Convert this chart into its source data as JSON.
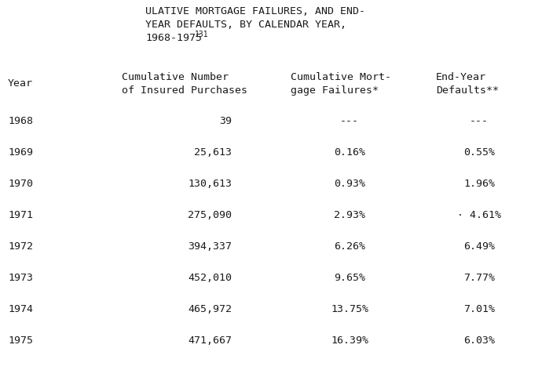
{
  "title_line1": "ULATIVE MORTGAGE FAILURES, AND END-",
  "title_line2": "YEAR DEFAULTS, BY CALENDAR YEAR,",
  "title_line3": "1968-1975",
  "title_superscript": "131",
  "col_headers": [
    [
      "Cumulative Number",
      "of Insured Purchases"
    ],
    [
      "Cumulative Mort-",
      "gage Failures*"
    ],
    [
      "End-Year",
      "Defaults**"
    ]
  ],
  "row_header": "Year",
  "rows": [
    [
      "1968",
      "39",
      "---",
      "---"
    ],
    [
      "1969",
      "25,613",
      "0.16%",
      "0.55%"
    ],
    [
      "1970",
      "130,613",
      "0.93%",
      "1.96%"
    ],
    [
      "1971",
      "275,090",
      "2.93%",
      "· 4.61%"
    ],
    [
      "1972",
      "394,337",
      "6.26%",
      "6.49%"
    ],
    [
      "1973",
      "452,010",
      "9.65%",
      "7.77%"
    ],
    [
      "1974",
      "465,972",
      "13.75%",
      "7.01%"
    ],
    [
      "1975",
      "471,667",
      "16.39%",
      "6.03%"
    ]
  ],
  "bg_color": "#ffffff",
  "text_color": "#1a1a1a",
  "font_family": "DejaVu Sans Mono",
  "title_fontsize": 9.5,
  "header_fontsize": 9.5,
  "data_fontsize": 9.5,
  "superscript_fontsize": 7.0
}
